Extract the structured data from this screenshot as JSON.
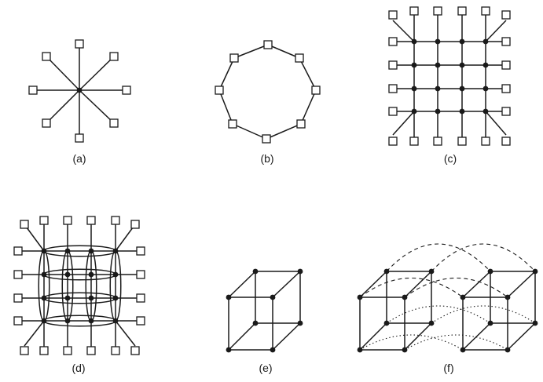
{
  "diagram": {
    "panels": [
      {
        "id": "a",
        "label": "(a)"
      },
      {
        "id": "b",
        "label": "(b)"
      },
      {
        "id": "c",
        "label": "(c)"
      },
      {
        "id": "d",
        "label": "(d)"
      },
      {
        "id": "e",
        "label": "(e)"
      },
      {
        "id": "f",
        "label": "(f)"
      }
    ]
  }
}
